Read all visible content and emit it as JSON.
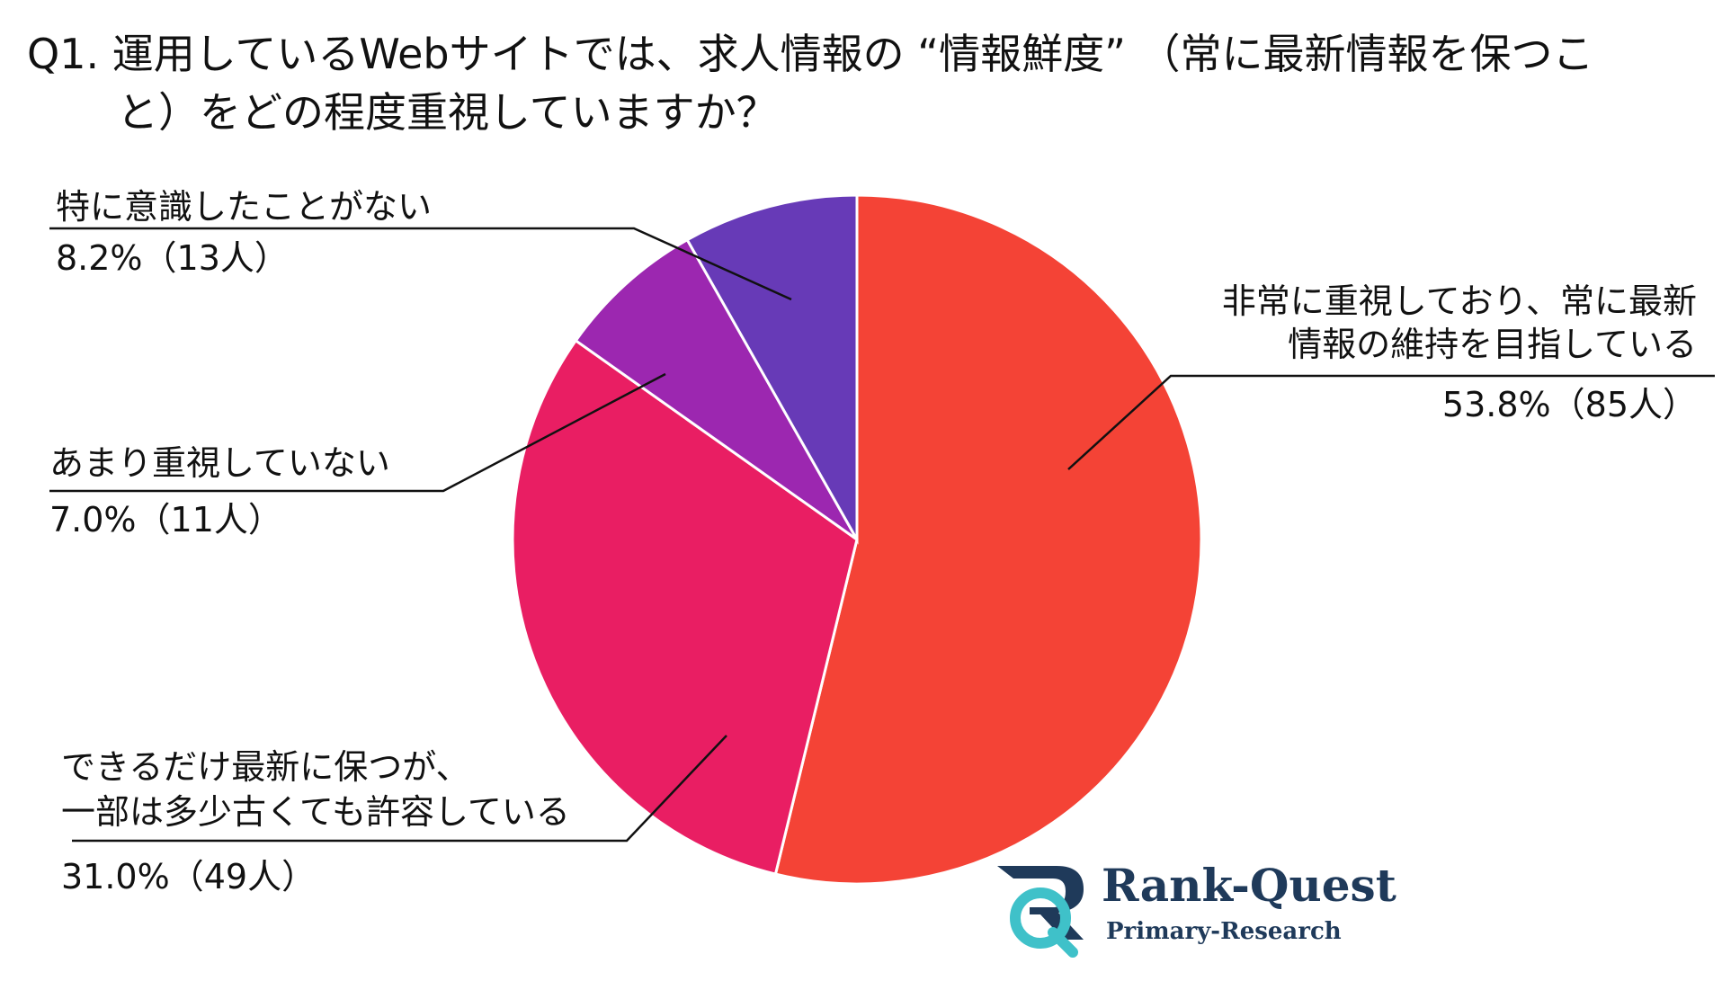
{
  "title": {
    "line1": "Q1. 運用しているWebサイトでは、求人情報の “情報鮮度” （常に最新情報を保つこ",
    "line2": "と）をどの程度重視していますか？"
  },
  "chart_data": {
    "type": "pie",
    "start_angle_deg": 0,
    "direction": "clockwise",
    "slices": [
      {
        "name_lines": [
          "非常に重視しており、常に最新",
          "情報の維持を目指している"
        ],
        "value": 53.8,
        "count_label": "53.8%（85人）",
        "color": "#f44336"
      },
      {
        "name_lines": [
          "できるだけ最新に保つが、",
          "一部は多少古くても許容している"
        ],
        "value": 31.0,
        "count_label": "31.0%（49人）",
        "color": "#e91e63"
      },
      {
        "name_lines": [
          "あまり重視していない"
        ],
        "value": 7.0,
        "count_label": "7.0%（11人）",
        "color": "#9c27b0"
      },
      {
        "name_lines": [
          "特に意識したことがない"
        ],
        "value": 8.2,
        "count_label": "8.2%（13人）",
        "color": "#673ab7"
      }
    ]
  },
  "logo": {
    "name": "Rank-Quest",
    "sub": "Primary-Research",
    "colors": {
      "dark": "#1f3a5a",
      "accent": "#3fc1c9"
    }
  }
}
